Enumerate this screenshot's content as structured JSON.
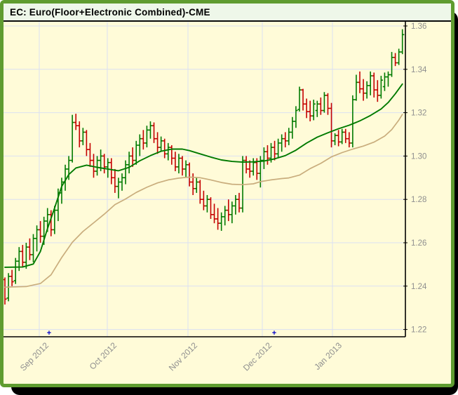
{
  "window_title": "EC: Euro(Floor+Electronic Combined)-CME",
  "colors": {
    "frame": "#5f9c30",
    "titlebar_bg": "#eef7e9",
    "plot_bg": "#fffbd8",
    "grid": "#dbe0f2",
    "axis": "#000000",
    "tick_label": "#8f8f8f",
    "up": "#007a00",
    "down": "#c40000",
    "ma_fast": "#007a00",
    "ma_slow": "#c9ad7d",
    "marker": "#0000c8"
  },
  "chart_data": {
    "type": "ohlc",
    "title": "EC: Euro(Floor+Electronic Combined)-CME",
    "ylim": [
      1.217,
      1.362
    ],
    "grid_on": true,
    "y_axis": {
      "side": "right",
      "ticks": [
        1.36,
        1.34,
        1.32,
        1.3,
        1.28,
        1.26,
        1.24,
        1.22
      ]
    },
    "x_axis": {
      "ticks": [
        {
          "label": "Sep 2012",
          "index": 9.68
        },
        {
          "label": "Oct 2012",
          "index": 28.85
        },
        {
          "label": "Nov 2012",
          "index": 51.58
        },
        {
          "label": "Dec 2012",
          "index": 72.53
        },
        {
          "label": "Jan 2013",
          "index": 92.29
        }
      ]
    },
    "markers": {
      "symbol": "+",
      "indices": [
        12.45,
        75.89
      ]
    },
    "bars": [
      [
        1.243,
        1.244,
        1.2315,
        1.234
      ],
      [
        1.2345,
        1.246,
        1.233,
        1.2445
      ],
      [
        1.2445,
        1.2475,
        1.24,
        1.242
      ],
      [
        1.2425,
        1.253,
        1.241,
        1.2515
      ],
      [
        1.2515,
        1.258,
        1.247,
        1.256
      ],
      [
        1.256,
        1.259,
        1.249,
        1.251
      ],
      [
        1.251,
        1.26,
        1.248,
        1.258
      ],
      [
        1.258,
        1.262,
        1.252,
        1.2545
      ],
      [
        1.2545,
        1.264,
        1.251,
        1.262
      ],
      [
        1.262,
        1.268,
        1.256,
        1.266
      ],
      [
        1.266,
        1.27,
        1.26,
        1.263
      ],
      [
        1.263,
        1.272,
        1.259,
        1.27
      ],
      [
        1.27,
        1.276,
        1.265,
        1.273
      ],
      [
        1.273,
        1.275,
        1.263,
        1.266
      ],
      [
        1.266,
        1.277,
        1.264,
        1.275
      ],
      [
        1.275,
        1.285,
        1.27,
        1.283
      ],
      [
        1.283,
        1.29,
        1.278,
        1.288
      ],
      [
        1.288,
        1.296,
        1.284,
        1.294
      ],
      [
        1.294,
        1.3,
        1.289,
        1.298
      ],
      [
        1.298,
        1.319,
        1.297,
        1.3155
      ],
      [
        1.3155,
        1.3195,
        1.312,
        1.314
      ],
      [
        1.314,
        1.316,
        1.304,
        1.307
      ],
      [
        1.307,
        1.313,
        1.305,
        1.311
      ],
      [
        1.311,
        1.312,
        1.3,
        1.303
      ],
      [
        1.303,
        1.306,
        1.295,
        1.298
      ],
      [
        1.298,
        1.301,
        1.29,
        1.293
      ],
      [
        1.293,
        1.3,
        1.291,
        1.298
      ],
      [
        1.298,
        1.303,
        1.293,
        1.3
      ],
      [
        1.3,
        1.301,
        1.292,
        1.295
      ],
      [
        1.295,
        1.299,
        1.29,
        1.297
      ],
      [
        1.297,
        1.299,
        1.287,
        1.29
      ],
      [
        1.29,
        1.294,
        1.283,
        1.286
      ],
      [
        1.286,
        1.29,
        1.2805,
        1.288
      ],
      [
        1.288,
        1.292,
        1.284,
        1.29
      ],
      [
        1.29,
        1.298,
        1.287,
        1.296
      ],
      [
        1.296,
        1.302,
        1.292,
        1.3
      ],
      [
        1.3,
        1.304,
        1.295,
        1.298
      ],
      [
        1.298,
        1.307,
        1.296,
        1.305
      ],
      [
        1.305,
        1.31,
        1.3,
        1.308
      ],
      [
        1.308,
        1.312,
        1.303,
        1.306
      ],
      [
        1.306,
        1.314,
        1.304,
        1.312
      ],
      [
        1.312,
        1.316,
        1.308,
        1.314
      ],
      [
        1.314,
        1.3155,
        1.306,
        1.308
      ],
      [
        1.308,
        1.311,
        1.301,
        1.304
      ],
      [
        1.304,
        1.309,
        1.302,
        1.307
      ],
      [
        1.307,
        1.308,
        1.299,
        1.301
      ],
      [
        1.301,
        1.306,
        1.298,
        1.304
      ],
      [
        1.304,
        1.305,
        1.296,
        1.299
      ],
      [
        1.299,
        1.302,
        1.293,
        1.295
      ],
      [
        1.295,
        1.301,
        1.292,
        1.299
      ],
      [
        1.299,
        1.3,
        1.291,
        1.294
      ],
      [
        1.294,
        1.298,
        1.29,
        1.296
      ],
      [
        1.296,
        1.297,
        1.286,
        1.288
      ],
      [
        1.288,
        1.292,
        1.282,
        1.285
      ],
      [
        1.285,
        1.29,
        1.283,
        1.288
      ],
      [
        1.288,
        1.289,
        1.278,
        1.28
      ],
      [
        1.28,
        1.284,
        1.275,
        1.277
      ],
      [
        1.277,
        1.282,
        1.274,
        1.28
      ],
      [
        1.28,
        1.281,
        1.271,
        1.273
      ],
      [
        1.273,
        1.278,
        1.269,
        1.271
      ],
      [
        1.271,
        1.276,
        1.266,
        1.269
      ],
      [
        1.269,
        1.274,
        1.2655,
        1.272
      ],
      [
        1.272,
        1.277,
        1.268,
        1.275
      ],
      [
        1.275,
        1.28,
        1.27,
        1.273
      ],
      [
        1.273,
        1.279,
        1.269,
        1.277
      ],
      [
        1.277,
        1.282,
        1.273,
        1.28
      ],
      [
        1.28,
        1.283,
        1.274,
        1.276
      ],
      [
        1.276,
        1.3,
        1.274,
        1.298
      ],
      [
        1.298,
        1.3,
        1.292,
        1.294
      ],
      [
        1.294,
        1.298,
        1.29,
        1.293
      ],
      [
        1.293,
        1.299,
        1.291,
        1.297
      ],
      [
        1.297,
        1.299,
        1.289,
        1.292
      ],
      [
        1.292,
        1.3,
        1.2855,
        1.298
      ],
      [
        1.298,
        1.304,
        1.294,
        1.302
      ],
      [
        1.302,
        1.305,
        1.296,
        1.299
      ],
      [
        1.299,
        1.306,
        1.297,
        1.304
      ],
      [
        1.304,
        1.307,
        1.298,
        1.301
      ],
      [
        1.301,
        1.308,
        1.299,
        1.306
      ],
      [
        1.306,
        1.31,
        1.302,
        1.308
      ],
      [
        1.308,
        1.311,
        1.304,
        1.307
      ],
      [
        1.307,
        1.313,
        1.305,
        1.311
      ],
      [
        1.311,
        1.318,
        1.308,
        1.316
      ],
      [
        1.316,
        1.323,
        1.313,
        1.321
      ],
      [
        1.3215,
        1.332,
        1.3205,
        1.3305
      ],
      [
        1.3305,
        1.331,
        1.321,
        1.324
      ],
      [
        1.324,
        1.3265,
        1.3175,
        1.3205
      ],
      [
        1.3205,
        1.3255,
        1.316,
        1.3185
      ],
      [
        1.3185,
        1.326,
        1.3165,
        1.324
      ],
      [
        1.321,
        1.3255,
        1.318,
        1.324
      ],
      [
        1.324,
        1.327,
        1.319,
        1.321
      ],
      [
        1.321,
        1.3295,
        1.32,
        1.328
      ],
      [
        1.328,
        1.329,
        1.319,
        1.322
      ],
      [
        1.322,
        1.3245,
        1.304,
        1.307
      ],
      [
        1.307,
        1.3105,
        1.305,
        1.3095
      ],
      [
        1.3095,
        1.312,
        1.3045,
        1.3065
      ],
      [
        1.3065,
        1.3125,
        1.3055,
        1.311
      ],
      [
        1.311,
        1.3125,
        1.306,
        1.308
      ],
      [
        1.308,
        1.311,
        1.304,
        1.306
      ],
      [
        1.306,
        1.328,
        1.304,
        1.326
      ],
      [
        1.326,
        1.3375,
        1.3255,
        1.334
      ],
      [
        1.334,
        1.339,
        1.329,
        1.331
      ],
      [
        1.331,
        1.3355,
        1.3255,
        1.329
      ],
      [
        1.329,
        1.3345,
        1.3265,
        1.3325
      ],
      [
        1.3325,
        1.339,
        1.328,
        1.337
      ],
      [
        1.337,
        1.3385,
        1.327,
        1.3305
      ],
      [
        1.3305,
        1.335,
        1.325,
        1.328
      ],
      [
        1.328,
        1.337,
        1.3265,
        1.335
      ],
      [
        1.332,
        1.3385,
        1.33,
        1.3365
      ],
      [
        1.3365,
        1.339,
        1.332,
        1.3375
      ],
      [
        1.3375,
        1.348,
        1.3365,
        1.3455
      ],
      [
        1.3455,
        1.3475,
        1.3415,
        1.343
      ],
      [
        1.343,
        1.3495,
        1.342,
        1.348
      ],
      [
        1.348,
        1.3585,
        1.347,
        1.356
      ]
    ],
    "series": [
      {
        "name": "ma-fast-green",
        "points": [
          [
            0,
            1.2487
          ],
          [
            5,
            1.2488
          ],
          [
            8,
            1.2502
          ],
          [
            10,
            1.256
          ],
          [
            12,
            1.2665
          ],
          [
            14,
            1.276
          ],
          [
            16,
            1.286
          ],
          [
            18,
            1.2915
          ],
          [
            20,
            1.2945
          ],
          [
            23,
            1.2958
          ],
          [
            26,
            1.2948
          ],
          [
            29,
            1.294
          ],
          [
            32,
            1.2932
          ],
          [
            35,
            1.2948
          ],
          [
            38,
            1.2978
          ],
          [
            41,
            1.3002
          ],
          [
            44,
            1.3022
          ],
          [
            47,
            1.3032
          ],
          [
            50,
            1.3032
          ],
          [
            52,
            1.3025
          ],
          [
            55,
            1.301
          ],
          [
            58,
            1.2995
          ],
          [
            61,
            1.2982
          ],
          [
            64,
            1.2975
          ],
          [
            67,
            1.2972
          ],
          [
            70,
            1.2973
          ],
          [
            73,
            1.2977
          ],
          [
            76,
            1.2987
          ],
          [
            79,
            1.3002
          ],
          [
            82,
            1.3027
          ],
          [
            85,
            1.306
          ],
          [
            88,
            1.3087
          ],
          [
            91,
            1.3107
          ],
          [
            94,
            1.3126
          ],
          [
            97,
            1.3142
          ],
          [
            100,
            1.3162
          ],
          [
            103,
            1.3187
          ],
          [
            106,
            1.3217
          ],
          [
            108,
            1.3247
          ],
          [
            110,
            1.3287
          ],
          [
            112,
            1.3332
          ]
        ]
      },
      {
        "name": "ma-slow-tan",
        "points": [
          [
            0,
            1.2395
          ],
          [
            6,
            1.2398
          ],
          [
            10,
            1.2412
          ],
          [
            13,
            1.2452
          ],
          [
            16,
            1.2532
          ],
          [
            19,
            1.2602
          ],
          [
            22,
            1.2652
          ],
          [
            25,
            1.2692
          ],
          [
            28,
            1.2732
          ],
          [
            31,
            1.2776
          ],
          [
            34,
            1.2802
          ],
          [
            37,
            1.2832
          ],
          [
            40,
            1.2856
          ],
          [
            43,
            1.2876
          ],
          [
            46,
            1.289
          ],
          [
            49,
            1.2898
          ],
          [
            52,
            1.2903
          ],
          [
            55,
            1.29
          ],
          [
            58,
            1.289
          ],
          [
            61,
            1.2878
          ],
          [
            64,
            1.287
          ],
          [
            67,
            1.2868
          ],
          [
            70,
            1.2872
          ],
          [
            72,
            1.2882
          ],
          [
            75,
            1.289
          ],
          [
            78,
            1.2896
          ],
          [
            80,
            1.2899
          ],
          [
            83,
            1.2912
          ],
          [
            86,
            1.2942
          ],
          [
            89,
            1.2966
          ],
          [
            92,
            1.2996
          ],
          [
            95,
            1.3016
          ],
          [
            98,
            1.3032
          ],
          [
            101,
            1.3046
          ],
          [
            104,
            1.3064
          ],
          [
            107,
            1.3092
          ],
          [
            109,
            1.3122
          ],
          [
            111,
            1.3166
          ],
          [
            112,
            1.3192
          ]
        ]
      }
    ]
  }
}
